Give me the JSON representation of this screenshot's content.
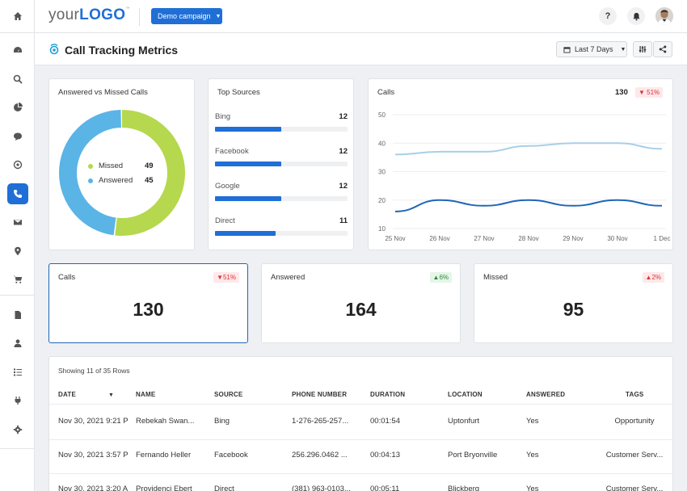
{
  "header": {
    "logo_prefix": "your",
    "logo_bold": "LOGO",
    "logo_tm": "™",
    "campaign_label": "Demo campaign",
    "help_label": "?"
  },
  "page": {
    "title": "Call Tracking Metrics",
    "date_range": "Last 7 Days"
  },
  "donut": {
    "title": "Answered vs Missed Calls",
    "items": [
      {
        "label": "Missed",
        "value": 49,
        "color": "#b5d84e"
      },
      {
        "label": "Answered",
        "value": 45,
        "color": "#5ab4e6"
      }
    ]
  },
  "sources": {
    "title": "Top Sources",
    "max": 24,
    "items": [
      {
        "name": "Bing",
        "value": 12
      },
      {
        "name": "Facebook",
        "value": 12
      },
      {
        "name": "Google",
        "value": 12
      },
      {
        "name": "Direct",
        "value": 11
      }
    ]
  },
  "calls_chart": {
    "title": "Calls",
    "total": "130",
    "badge": "51%"
  },
  "chart_data": {
    "type": "line",
    "x": [
      "25 Nov",
      "26 Nov",
      "27 Nov",
      "28 Nov",
      "29 Nov",
      "30 Nov",
      "1 Dec"
    ],
    "ylim": [
      10,
      50
    ],
    "yticks": [
      10,
      20,
      30,
      40,
      50
    ],
    "grid": true,
    "series": [
      {
        "values": [
          36,
          37,
          37,
          39,
          40,
          40,
          38
        ],
        "color": "#a8cfe8"
      },
      {
        "values": [
          16,
          20,
          18,
          20,
          18,
          20,
          18
        ],
        "color": "#1f66b8"
      }
    ]
  },
  "kpis": [
    {
      "title": "Calls",
      "value": "130",
      "badge": "51%",
      "dir": "down"
    },
    {
      "title": "Answered",
      "value": "164",
      "badge": "6%",
      "dir": "up"
    },
    {
      "title": "Missed",
      "value": "95",
      "badge": "2%",
      "dir": "up-red"
    }
  ],
  "table": {
    "caption": "Showing 11 of 35 Rows",
    "columns": [
      "DATE",
      "NAME",
      "SOURCE",
      "PHONE NUMBER",
      "DURATION",
      "LOCATION",
      "ANSWERED",
      "TAGS"
    ],
    "rows": [
      [
        "Nov 30, 2021 9:21 P",
        "Rebekah Swan...",
        "Bing",
        "1-276-265-257...",
        "00:01:54",
        "Uptonfurt",
        "Yes",
        "Opportunity"
      ],
      [
        "Nov 30, 2021 3:57 P",
        "Fernando Heller",
        "Facebook",
        "256.296.0462 ...",
        "00:04:13",
        "Port Bryonville",
        "Yes",
        "Customer Serv..."
      ],
      [
        "Nov 30, 2021 3:20 A",
        "Providenci Ebert",
        "Direct",
        "(381) 963-0103...",
        "00:05:11",
        "Blickberg",
        "Yes",
        "Customer Serv..."
      ]
    ]
  }
}
